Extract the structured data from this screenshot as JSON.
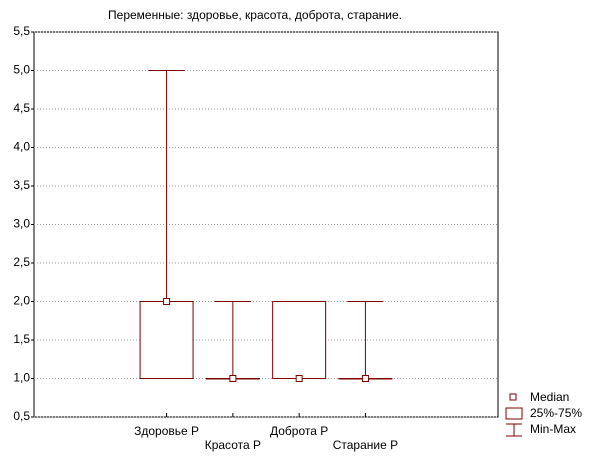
{
  "chart_data": {
    "type": "box",
    "title": "Переменные: здоровье, красота, доброта, старание.",
    "categories": [
      "Здоровье Р",
      "Красота Р",
      "Доброта Р",
      "Старание Р"
    ],
    "median": [
      2,
      1,
      1,
      1
    ],
    "q1": [
      1,
      1,
      1,
      1
    ],
    "q3": [
      2,
      1,
      2,
      1
    ],
    "min": [
      1,
      1,
      1,
      1
    ],
    "max": [
      5,
      2,
      2,
      2
    ],
    "color": "#800000",
    "legend_labels": [
      "Median",
      "25%-75%",
      "Min-Max"
    ],
    "ylim": [
      0.5,
      5.5
    ],
    "yticks": [
      {
        "value": 0.5,
        "label": "0,5"
      },
      {
        "value": 1,
        "label": "1,0"
      },
      {
        "value": 1.5,
        "label": "1,5"
      },
      {
        "value": 2,
        "label": "2,0"
      },
      {
        "value": 2.5,
        "label": "2,5"
      },
      {
        "value": 3,
        "label": "3,0"
      },
      {
        "value": 3.5,
        "label": "3,5"
      },
      {
        "value": 4,
        "label": "4,0"
      },
      {
        "value": 4.5,
        "label": "4,5"
      },
      {
        "value": 5,
        "label": "5,0"
      },
      {
        "value": 5.5,
        "label": "5,5"
      }
    ],
    "grid": true
  }
}
